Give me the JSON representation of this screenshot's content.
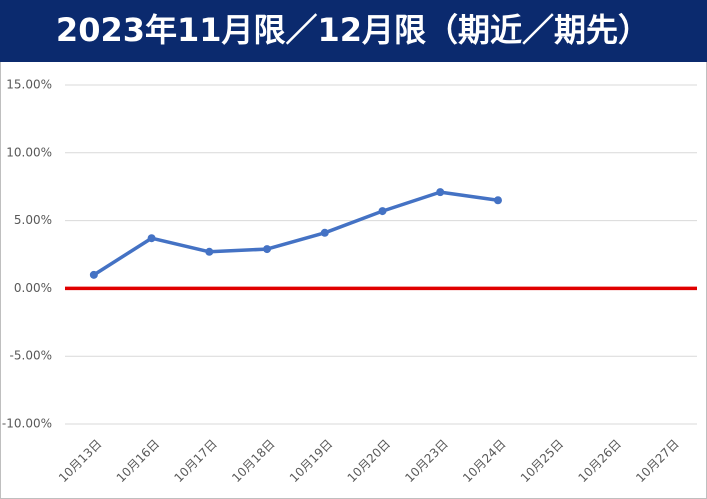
{
  "chart_data": {
    "type": "line",
    "title": "2023年11月限／12月限（期近／期先）",
    "categories": [
      "10月13日",
      "10月16日",
      "10月17日",
      "10月18日",
      "10月19日",
      "10月20日",
      "10月23日",
      "10月24日",
      "10月25日",
      "10月26日",
      "10月27日"
    ],
    "series": [
      {
        "name": null,
        "color": "#4472c4",
        "values": [
          1.0,
          3.7,
          2.7,
          2.9,
          4.1,
          5.7,
          7.1,
          6.5,
          null,
          null,
          null
        ]
      }
    ],
    "ylim": [
      -10,
      15
    ],
    "yticks": [
      {
        "value": -10,
        "label": "-10.00%"
      },
      {
        "value": -5,
        "label": "-5.00%"
      },
      {
        "value": 0,
        "label": "0.00%"
      },
      {
        "value": 5,
        "label": "5.00%"
      },
      {
        "value": 10,
        "label": "10.00%"
      },
      {
        "value": 15,
        "label": "15.00%"
      }
    ],
    "grid": true,
    "zero_line": {
      "value": 0,
      "color": "#e00000"
    }
  }
}
